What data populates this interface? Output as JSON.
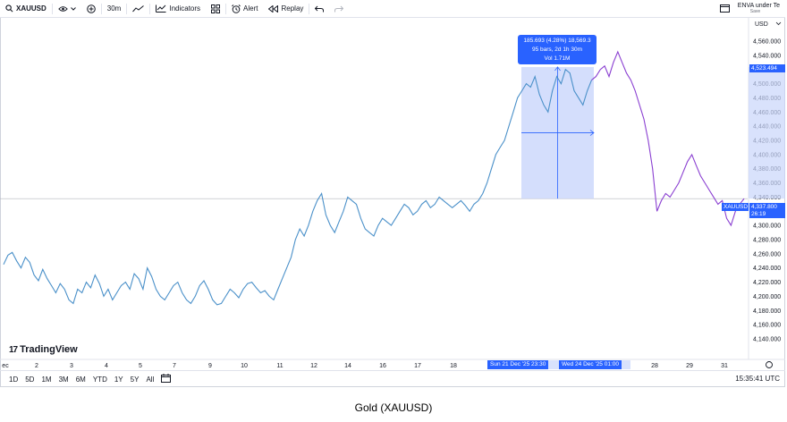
{
  "toolbar": {
    "symbol": "XAUUSD",
    "interval": "30m",
    "indicators_label": "Indicators",
    "alert_label": "Alert",
    "replay_label": "Replay",
    "layout_name": "ENVA under Te",
    "layout_status": "Save"
  },
  "tooltip": {
    "line1": "185.693 (4.28%) 18,569.3",
    "line2": "95 bars, 2d 1h 30m",
    "line3": "Vol 1.71M"
  },
  "price_axis": {
    "currency": "USD",
    "ticks": [
      "4,560.000",
      "4,540.000",
      "4,520.000",
      "4,500.000",
      "4,480.000",
      "4,460.000",
      "4,440.000",
      "4,420.000",
      "4,400.000",
      "4,380.000",
      "4,360.000",
      "4,340.000",
      "4,320.000",
      "4,300.000",
      "4,280.000",
      "4,260.000",
      "4,240.000",
      "4,220.000",
      "4,200.000",
      "4,180.000",
      "4,160.000",
      "4,140.000"
    ],
    "measure_price": "4,523.494",
    "symbol_tag": "XAUUSD",
    "last_price": "4,337.800",
    "countdown": "26:19"
  },
  "time_axis": {
    "ticks": [
      "ec",
      "2",
      "3",
      "4",
      "5",
      "7",
      "9",
      "10",
      "11",
      "12",
      "14",
      "16",
      "17",
      "18",
      "28",
      "29",
      "31"
    ],
    "range_start": "Sun 21 Dec '25   23:30",
    "range_end": "Wed 24 Dec '25   01:00"
  },
  "ranges": [
    "1D",
    "5D",
    "1M",
    "3M",
    "6M",
    "YTD",
    "1Y",
    "5Y",
    "All"
  ],
  "clock": "15:35:41 UTC",
  "brand": "TradingView",
  "caption": "Gold (XAUUSD)",
  "colors": {
    "line": "#4a90c9",
    "line_end": "#8a3fd1",
    "accent": "#2962ff",
    "selection": "#c9d6fb"
  },
  "chart_data": {
    "type": "line",
    "title": "Gold (XAUUSD)",
    "ylabel": "USD",
    "ylim": [
      4140,
      4570
    ],
    "x_ticks": [
      "ec",
      "2",
      "3",
      "4",
      "5",
      "7",
      "9",
      "10",
      "11",
      "12",
      "14",
      "16",
      "17",
      "18",
      "28",
      "29",
      "31"
    ],
    "series": [
      {
        "values": [
          4245,
          4258,
          4262,
          4250,
          4240,
          4255,
          4248,
          4230,
          4222,
          4238,
          4225,
          4215,
          4205,
          4218,
          4210,
          4195,
          4190,
          4210,
          4205,
          4220,
          4212,
          4230,
          4218,
          4200,
          4210,
          4195,
          4205,
          4215,
          4220,
          4210,
          4232,
          4225,
          4210,
          4240,
          4228,
          4210,
          4200,
          4195,
          4205,
          4215,
          4220,
          4205,
          4195,
          4190,
          4200,
          4215,
          4222,
          4210,
          4195,
          4188,
          4190,
          4200,
          4210,
          4205,
          4198,
          4210,
          4218,
          4220,
          4212,
          4205,
          4208,
          4200,
          4195,
          4210,
          4225,
          4240,
          4255,
          4280,
          4295,
          4285,
          4300,
          4320,
          4335,
          4345,
          4315,
          4300,
          4290,
          4305,
          4320,
          4340,
          4335,
          4330,
          4310,
          4295,
          4290,
          4285,
          4300,
          4310,
          4305,
          4300,
          4310,
          4320,
          4330,
          4325,
          4315,
          4320,
          4330,
          4335,
          4325,
          4330,
          4340,
          4335,
          4330,
          4325,
          4330,
          4335,
          4328,
          4320,
          4330,
          4335,
          4345,
          4360,
          4380,
          4400,
          4410,
          4420,
          4440,
          4460,
          4480,
          4490,
          4500,
          4495,
          4510,
          4485,
          4470,
          4460,
          4490,
          4510,
          4500,
          4520,
          4515,
          4490,
          4480,
          4470,
          4490,
          4505,
          4510,
          4520,
          4525,
          4510,
          4530,
          4545,
          4530,
          4515,
          4505,
          4490,
          4470,
          4450,
          4420,
          4380,
          4320,
          4335,
          4345,
          4340,
          4350,
          4360,
          4375,
          4390,
          4400,
          4385,
          4370,
          4360,
          4350,
          4340,
          4330,
          4335,
          4310,
          4300,
          4320,
          4330,
          4337.8
        ]
      }
    ]
  }
}
